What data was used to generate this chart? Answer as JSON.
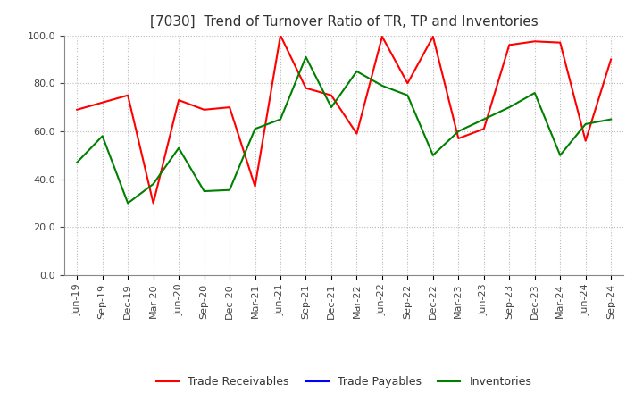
{
  "title": "[7030]  Trend of Turnover Ratio of TR, TP and Inventories",
  "ylim": [
    0.0,
    100.0
  ],
  "yticks": [
    0.0,
    20.0,
    40.0,
    60.0,
    80.0,
    100.0
  ],
  "x_labels": [
    "Jun-19",
    "Sep-19",
    "Dec-19",
    "Mar-20",
    "Jun-20",
    "Sep-20",
    "Dec-20",
    "Mar-21",
    "Jun-21",
    "Sep-21",
    "Dec-21",
    "Mar-22",
    "Jun-22",
    "Sep-22",
    "Dec-22",
    "Mar-23",
    "Jun-23",
    "Sep-23",
    "Dec-23",
    "Mar-24",
    "Jun-24",
    "Sep-24"
  ],
  "trade_receivables": [
    69.0,
    72.0,
    75.0,
    30.0,
    73.0,
    69.0,
    70.0,
    37.0,
    100.0,
    78.0,
    75.0,
    59.0,
    99.5,
    80.0,
    99.5,
    57.0,
    61.0,
    96.0,
    97.5,
    97.0,
    56.0,
    90.0
  ],
  "trade_payables": [
    null,
    null,
    null,
    null,
    null,
    null,
    null,
    null,
    null,
    null,
    null,
    null,
    null,
    null,
    null,
    null,
    null,
    null,
    null,
    null,
    null,
    null
  ],
  "inventories": [
    47.0,
    58.0,
    30.0,
    38.0,
    53.0,
    35.0,
    35.5,
    61.0,
    65.0,
    91.0,
    70.0,
    85.0,
    79.0,
    75.0,
    50.0,
    60.0,
    65.0,
    70.0,
    76.0,
    50.0,
    63.0,
    65.0
  ],
  "tr_color": "#ff0000",
  "tp_color": "#0000ff",
  "inv_color": "#008000",
  "background_color": "#ffffff",
  "grid_color": "#bbbbbb",
  "title_fontsize": 11,
  "tick_fontsize": 8,
  "legend_fontsize": 9
}
